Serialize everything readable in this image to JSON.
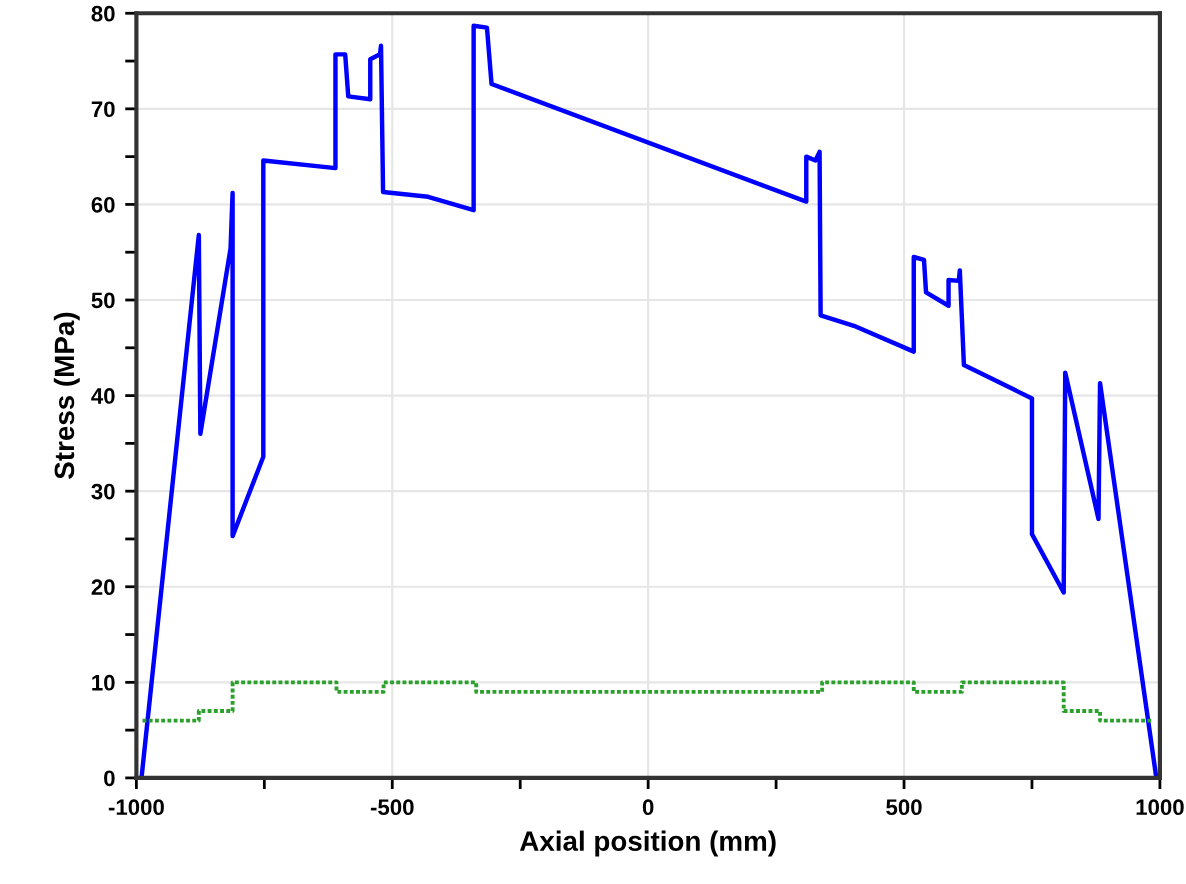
{
  "chart_data": {
    "type": "line",
    "xlabel": "Axial position (mm)",
    "ylabel": "Stress (MPa)",
    "xlim": [
      -1000,
      1000
    ],
    "ylim": [
      0,
      80
    ],
    "xticks": [
      -1000,
      {
        "value": -750,
        "label": null
      },
      -500,
      {
        "value": -250,
        "label": null
      },
      0,
      {
        "value": 250,
        "label": null
      },
      500,
      {
        "value": 750,
        "label": null
      },
      1000
    ],
    "yticks": [
      0,
      {
        "value": 5,
        "label": null
      },
      10,
      {
        "value": 15,
        "label": null
      },
      20,
      {
        "value": 25,
        "label": null
      },
      30,
      {
        "value": 35,
        "label": null
      },
      40,
      {
        "value": 45,
        "label": null
      },
      50,
      {
        "value": 55,
        "label": null
      },
      60,
      {
        "value": 65,
        "label": null
      },
      70,
      {
        "value": 75,
        "label": null
      },
      80
    ],
    "grid": true,
    "legend": false,
    "series": [
      {
        "color": "#0000ff",
        "line_style": "solid",
        "x": [
          -990,
          -878,
          -875,
          -816,
          -812,
          -812,
          -752,
          -752,
          -611,
          -611,
          -592,
          -586,
          -543,
          -543,
          -524,
          -522,
          -518,
          -430,
          -341,
          -341,
          -315,
          -306,
          309,
          309,
          327,
          335,
          337,
          402,
          519,
          519,
          539,
          543,
          587,
          587,
          607,
          609,
          617,
          750,
          750,
          812,
          815,
          880,
          883,
          993
        ],
        "values": [
          0,
          56.8,
          36,
          55.4,
          61.2,
          25.3,
          33.6,
          64.6,
          63.8,
          75.7,
          75.7,
          71.3,
          71.0,
          75.2,
          75.7,
          76.6,
          61.3,
          60.8,
          59.4,
          78.7,
          78.5,
          72.6,
          60.3,
          65.0,
          64.6,
          65.5,
          48.4,
          47.3,
          44.6,
          54.5,
          54.2,
          50.8,
          49.4,
          52.1,
          52,
          53.1,
          43.2,
          39.7,
          25.5,
          19.4,
          42.4,
          27.1,
          41.3,
          0
        ]
      },
      {
        "type": "step",
        "color": "#2ca02c",
        "line_style": "dotted",
        "x": [
          -988,
          -878,
          -812,
          -609,
          -517,
          -336,
          340,
          519,
          613,
          812,
          883,
          987
        ],
        "values": [
          6,
          7,
          10,
          9,
          10,
          9,
          10,
          9,
          10,
          7,
          6,
          6
        ]
      }
    ]
  }
}
